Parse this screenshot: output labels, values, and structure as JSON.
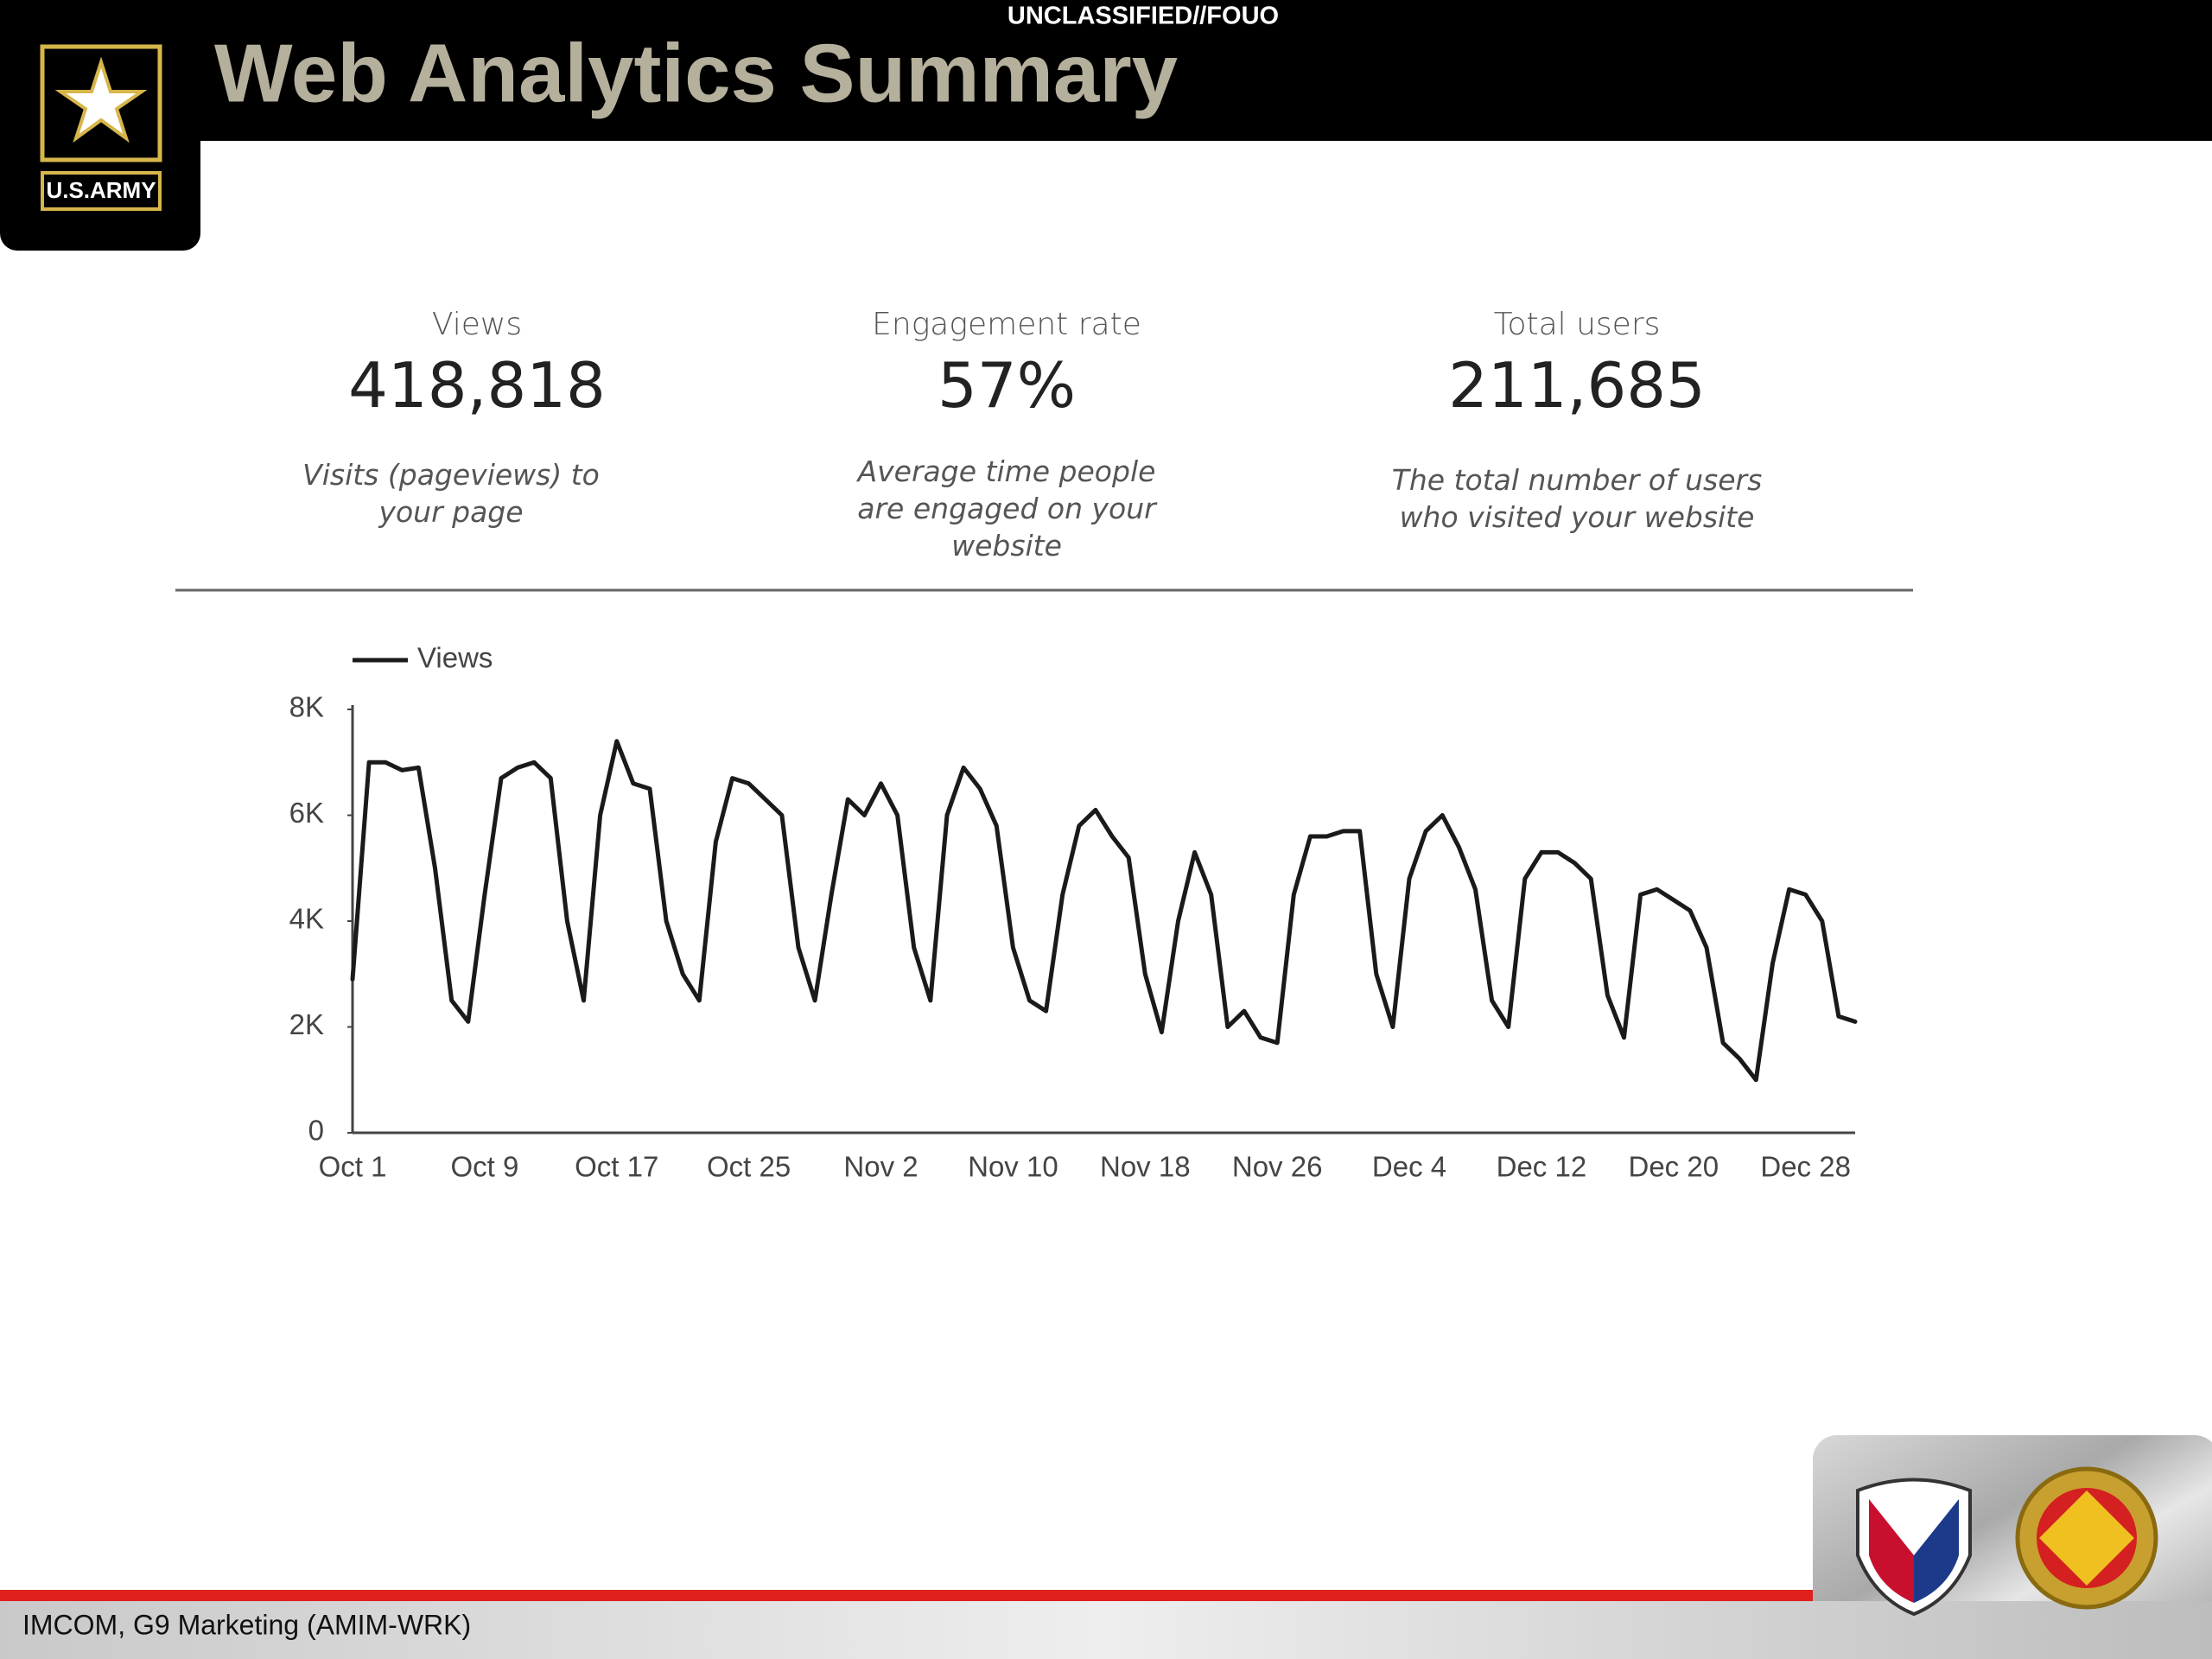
{
  "header": {
    "classification": "UNCLASSIFIED//FOUO",
    "title": "Web Analytics Summary",
    "logo_text": "U.S.ARMY"
  },
  "kpis": [
    {
      "label": "Views",
      "value": "418,818",
      "description": "Visits (pageviews) to your page"
    },
    {
      "label": "Engagement rate",
      "value": "57%",
      "description": "Average time people are engaged on your website"
    },
    {
      "label": "Total users",
      "value": "211,685",
      "description": "The total number of users who visited your website"
    }
  ],
  "footer": "IMCOM, G9 Marketing (AMIM-WRK)",
  "chart_data": {
    "type": "line",
    "categories": [
      "Oct 1",
      null,
      null,
      null,
      null,
      null,
      null,
      null,
      "Oct 9",
      null,
      null,
      null,
      null,
      null,
      null,
      null,
      "Oct 17",
      null,
      null,
      null,
      null,
      null,
      null,
      null,
      "Oct 25",
      null,
      null,
      null,
      null,
      null,
      null,
      null,
      "Nov 2",
      null,
      null,
      null,
      null,
      null,
      null,
      null,
      "Nov 10",
      null,
      null,
      null,
      null,
      null,
      null,
      null,
      "Nov 18",
      null,
      null,
      null,
      null,
      null,
      null,
      null,
      "Nov 26",
      null,
      null,
      null,
      null,
      null,
      null,
      null,
      "Dec 4",
      null,
      null,
      null,
      null,
      null,
      null,
      null,
      "Dec 12",
      null,
      null,
      null,
      null,
      null,
      null,
      null,
      "Dec 20",
      null,
      null,
      null,
      null,
      null,
      null,
      null,
      "Dec 28",
      null,
      null,
      null
    ],
    "series": [
      {
        "name": "Views",
        "color": "#1a1a1a",
        "values": [
          2900,
          7000,
          7000,
          6850,
          6900,
          5000,
          2500,
          2100,
          4500,
          6700,
          6900,
          7000,
          6700,
          4000,
          2500,
          6000,
          7400,
          6600,
          6500,
          4000,
          3000,
          2500,
          5500,
          6700,
          6600,
          6300,
          6000,
          3500,
          2500,
          4500,
          6300,
          6000,
          6600,
          6000,
          3500,
          2500,
          6000,
          6900,
          6500,
          5800,
          3500,
          2500,
          2300,
          4500,
          5800,
          6100,
          5600,
          5200,
          3000,
          1900,
          4000,
          5300,
          4500,
          2000,
          2300,
          1800,
          1700,
          4500,
          5600,
          5600,
          5700,
          5700,
          3000,
          2000,
          4800,
          5700,
          6000,
          5400,
          4600,
          2500,
          2000,
          4800,
          5300,
          5300,
          5100,
          4800,
          2600,
          1800,
          4500,
          4600,
          4400,
          4200,
          3500,
          1700,
          1400,
          1000,
          3200,
          4600,
          4500,
          4000,
          2200,
          2100
        ]
      }
    ],
    "ylim": [
      0,
      8000
    ],
    "yticks": [
      0,
      {
        "value": 2000,
        "label": "2K"
      },
      {
        "value": 4000,
        "label": "4K"
      },
      {
        "value": 6000,
        "label": "6K"
      },
      {
        "value": 8000,
        "label": "8K"
      }
    ],
    "legend": "top-left"
  }
}
